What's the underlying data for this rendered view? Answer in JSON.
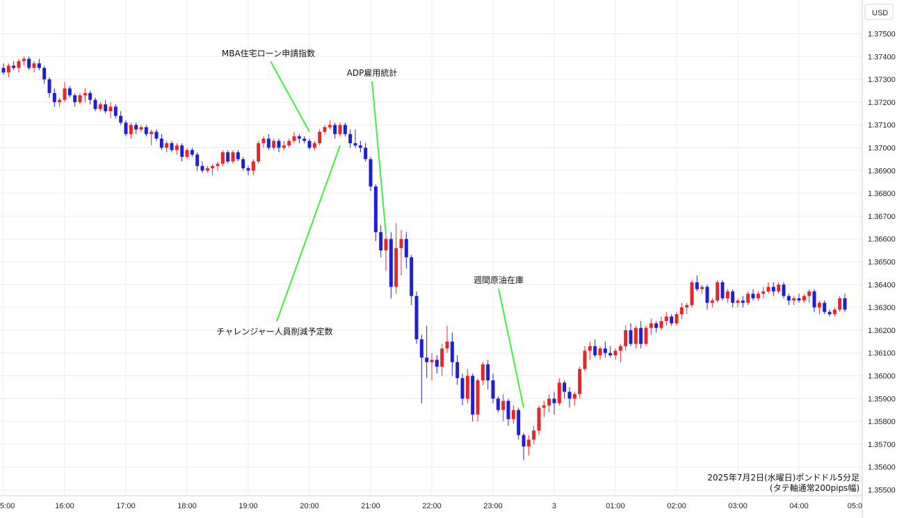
{
  "chart_data": {
    "type": "candlestick",
    "currency_label": "USD",
    "note_line1": "2025年7月2日(水曜日)ポンドドル5分足",
    "note_line2": "(タテ軸通常200pips幅)",
    "ylim": [
      1.355,
      1.3759
    ],
    "yticks": [
      "1.37500",
      "1.37400",
      "1.37300",
      "1.37200",
      "1.37100",
      "1.37000",
      "1.36900",
      "1.36800",
      "1.36700",
      "1.36600",
      "1.36500",
      "1.36400",
      "1.36300",
      "1.36200",
      "1.36100",
      "1.36000",
      "1.35900",
      "1.35800",
      "1.35700",
      "1.35600",
      "1.35500"
    ],
    "xticks": [
      "5:00",
      "16:00",
      "17:00",
      "18:00",
      "19:00",
      "20:00",
      "21:00",
      "22:00",
      "23:00",
      "3",
      "01:00",
      "02:00",
      "03:00",
      "04:00",
      "05:0"
    ],
    "colors": {
      "up": "#e8262a",
      "down": "#1f1fd8",
      "annotation": "#3cf03c"
    },
    "annotations": [
      {
        "label": "MBA住宅ローン申請指数",
        "target_time": "20:00",
        "target_price": 1.3707
      },
      {
        "label": "ADP雇用統計",
        "target_time": "21:15",
        "target_price": 1.3662
      },
      {
        "label": "チャレンジャー人員削減予定数",
        "target_time": "20:30",
        "target_price": 1.3701
      },
      {
        "label": "週間原油在庫",
        "target_time": "23:30",
        "target_price": 1.3586
      }
    ],
    "candles": [
      [
        1.3735,
        1.3737,
        1.3732,
        1.3733
      ],
      [
        1.3733,
        1.3737,
        1.3731,
        1.3736
      ],
      [
        1.3736,
        1.3738,
        1.3734,
        1.3735
      ],
      [
        1.3735,
        1.3739,
        1.3733,
        1.3738
      ],
      [
        1.3738,
        1.374,
        1.3736,
        1.3739
      ],
      [
        1.3739,
        1.374,
        1.3734,
        1.3735
      ],
      [
        1.3735,
        1.3738,
        1.3733,
        1.3737
      ],
      [
        1.3737,
        1.3739,
        1.3734,
        1.3735
      ],
      [
        1.3735,
        1.3736,
        1.3728,
        1.373
      ],
      [
        1.373,
        1.3731,
        1.3722,
        1.3724
      ],
      [
        1.3724,
        1.3726,
        1.3718,
        1.372
      ],
      [
        1.372,
        1.3722,
        1.3718,
        1.3721
      ],
      [
        1.3721,
        1.3729,
        1.372,
        1.3726
      ],
      [
        1.3726,
        1.3727,
        1.3722,
        1.3723
      ],
      [
        1.3723,
        1.3724,
        1.3718,
        1.372
      ],
      [
        1.372,
        1.3724,
        1.3719,
        1.3723
      ],
      [
        1.3723,
        1.3726,
        1.372,
        1.3724
      ],
      [
        1.3724,
        1.3725,
        1.3719,
        1.3721
      ],
      [
        1.3721,
        1.3722,
        1.3716,
        1.3717
      ],
      [
        1.3717,
        1.372,
        1.3716,
        1.3719
      ],
      [
        1.3719,
        1.3721,
        1.3715,
        1.3716
      ],
      [
        1.3716,
        1.372,
        1.3713,
        1.3718
      ],
      [
        1.3718,
        1.3719,
        1.3713,
        1.3714
      ],
      [
        1.3714,
        1.3716,
        1.371,
        1.3711
      ],
      [
        1.3711,
        1.3712,
        1.3705,
        1.3706
      ],
      [
        1.3706,
        1.3711,
        1.3704,
        1.371
      ],
      [
        1.371,
        1.3711,
        1.3706,
        1.3708
      ],
      [
        1.3708,
        1.371,
        1.3707,
        1.3709
      ],
      [
        1.3709,
        1.371,
        1.3705,
        1.3706
      ],
      [
        1.3706,
        1.3708,
        1.3701,
        1.3707
      ],
      [
        1.3707,
        1.3708,
        1.3703,
        1.3704
      ],
      [
        1.3704,
        1.3706,
        1.3699,
        1.37
      ],
      [
        1.37,
        1.3703,
        1.3698,
        1.3702
      ],
      [
        1.3702,
        1.3703,
        1.3698,
        1.3699
      ],
      [
        1.3699,
        1.3702,
        1.3697,
        1.3701
      ],
      [
        1.3701,
        1.3702,
        1.3694,
        1.3696
      ],
      [
        1.3696,
        1.37,
        1.3695,
        1.3699
      ],
      [
        1.3699,
        1.37,
        1.3696,
        1.3697
      ],
      [
        1.3697,
        1.3698,
        1.369,
        1.3692
      ],
      [
        1.3692,
        1.3694,
        1.3689,
        1.369
      ],
      [
        1.369,
        1.3692,
        1.3689,
        1.3691
      ],
      [
        1.3691,
        1.3693,
        1.3688,
        1.3692
      ],
      [
        1.3692,
        1.3694,
        1.369,
        1.3693
      ],
      [
        1.3693,
        1.3699,
        1.3692,
        1.3698
      ],
      [
        1.3698,
        1.3699,
        1.3693,
        1.3694
      ],
      [
        1.3694,
        1.3699,
        1.3693,
        1.3698
      ],
      [
        1.3698,
        1.3699,
        1.3694,
        1.3695
      ],
      [
        1.3695,
        1.3696,
        1.369,
        1.3691
      ],
      [
        1.3691,
        1.3692,
        1.3688,
        1.369
      ],
      [
        1.369,
        1.3695,
        1.3688,
        1.3694
      ],
      [
        1.3694,
        1.3703,
        1.3693,
        1.3702
      ],
      [
        1.3702,
        1.3705,
        1.37,
        1.3704
      ],
      [
        1.3704,
        1.3706,
        1.3699,
        1.37
      ],
      [
        1.37,
        1.3704,
        1.3699,
        1.3703
      ],
      [
        1.3703,
        1.3704,
        1.3698,
        1.37
      ],
      [
        1.37,
        1.3703,
        1.3699,
        1.3701
      ],
      [
        1.3701,
        1.3704,
        1.37,
        1.3703
      ],
      [
        1.3703,
        1.3707,
        1.3702,
        1.3705
      ],
      [
        1.3705,
        1.3706,
        1.3702,
        1.3704
      ],
      [
        1.3704,
        1.3705,
        1.3702,
        1.3703
      ],
      [
        1.3703,
        1.3704,
        1.3699,
        1.37
      ],
      [
        1.37,
        1.3703,
        1.3699,
        1.3702
      ],
      [
        1.3702,
        1.3708,
        1.3701,
        1.3707
      ],
      [
        1.3707,
        1.371,
        1.3706,
        1.3709
      ],
      [
        1.3709,
        1.3712,
        1.3708,
        1.371
      ],
      [
        1.371,
        1.3711,
        1.3704,
        1.3706
      ],
      [
        1.3706,
        1.3711,
        1.3705,
        1.371
      ],
      [
        1.371,
        1.3711,
        1.3705,
        1.3706
      ],
      [
        1.3706,
        1.3708,
        1.37,
        1.3702
      ],
      [
        1.3702,
        1.3708,
        1.37,
        1.3701
      ],
      [
        1.3701,
        1.3703,
        1.3698,
        1.37
      ],
      [
        1.37,
        1.3702,
        1.3694,
        1.3695
      ],
      [
        1.3695,
        1.3696,
        1.3681,
        1.3683
      ],
      [
        1.3683,
        1.3684,
        1.3659,
        1.3663
      ],
      [
        1.3663,
        1.3666,
        1.3652,
        1.3655
      ],
      [
        1.3655,
        1.3662,
        1.3646,
        1.366
      ],
      [
        1.366,
        1.3663,
        1.3634,
        1.3639
      ],
      [
        1.3639,
        1.3667,
        1.3636,
        1.3656
      ],
      [
        1.3656,
        1.3664,
        1.3644,
        1.366
      ],
      [
        1.366,
        1.3663,
        1.3647,
        1.3652
      ],
      [
        1.3652,
        1.3653,
        1.3631,
        1.3635
      ],
      [
        1.3635,
        1.3637,
        1.3614,
        1.3616
      ],
      [
        1.3616,
        1.3618,
        1.3588,
        1.3608
      ],
      [
        1.3608,
        1.3622,
        1.3599,
        1.3606
      ],
      [
        1.3606,
        1.361,
        1.3598,
        1.3607
      ],
      [
        1.3607,
        1.3609,
        1.3601,
        1.3604
      ],
      [
        1.3604,
        1.3614,
        1.36,
        1.3612
      ],
      [
        1.3612,
        1.3622,
        1.361,
        1.3615
      ],
      [
        1.3615,
        1.3619,
        1.36,
        1.3606
      ],
      [
        1.3606,
        1.3609,
        1.3596,
        1.3599
      ],
      [
        1.3599,
        1.3601,
        1.3587,
        1.359
      ],
      [
        1.359,
        1.3603,
        1.3588,
        1.36
      ],
      [
        1.36,
        1.3601,
        1.358,
        1.3583
      ],
      [
        1.3583,
        1.3599,
        1.358,
        1.3598
      ],
      [
        1.3598,
        1.3606,
        1.3596,
        1.3605
      ],
      [
        1.3605,
        1.3607,
        1.3594,
        1.3598
      ],
      [
        1.3598,
        1.3601,
        1.3588,
        1.359
      ],
      [
        1.359,
        1.3591,
        1.3584,
        1.3585
      ],
      [
        1.3585,
        1.3592,
        1.358,
        1.3589
      ],
      [
        1.3589,
        1.359,
        1.3578,
        1.3581
      ],
      [
        1.3581,
        1.3587,
        1.3579,
        1.3585
      ],
      [
        1.3585,
        1.3586,
        1.3572,
        1.3574
      ],
      [
        1.3574,
        1.3575,
        1.3563,
        1.3569
      ],
      [
        1.3569,
        1.3574,
        1.3565,
        1.3572
      ],
      [
        1.3572,
        1.3578,
        1.357,
        1.3576
      ],
      [
        1.3576,
        1.3587,
        1.3574,
        1.3586
      ],
      [
        1.3586,
        1.3589,
        1.3582,
        1.3587
      ],
      [
        1.3587,
        1.3592,
        1.3584,
        1.359
      ],
      [
        1.359,
        1.3593,
        1.3583,
        1.3588
      ],
      [
        1.3588,
        1.3599,
        1.3587,
        1.3597
      ],
      [
        1.3597,
        1.3598,
        1.359,
        1.3593
      ],
      [
        1.3593,
        1.3595,
        1.3586,
        1.359
      ],
      [
        1.359,
        1.3593,
        1.3587,
        1.3592
      ],
      [
        1.3592,
        1.3604,
        1.359,
        1.3603
      ],
      [
        1.3603,
        1.3613,
        1.3602,
        1.3611
      ],
      [
        1.3611,
        1.3615,
        1.3607,
        1.3613
      ],
      [
        1.3613,
        1.3616,
        1.3608,
        1.3609
      ],
      [
        1.3609,
        1.3613,
        1.3607,
        1.3612
      ],
      [
        1.3612,
        1.3615,
        1.3608,
        1.361
      ],
      [
        1.361,
        1.3613,
        1.3608,
        1.3609
      ],
      [
        1.3609,
        1.3612,
        1.3607,
        1.3611
      ],
      [
        1.3611,
        1.3614,
        1.3606,
        1.3613
      ],
      [
        1.3613,
        1.3622,
        1.3611,
        1.362
      ],
      [
        1.362,
        1.3623,
        1.3613,
        1.3614
      ],
      [
        1.3614,
        1.3622,
        1.3612,
        1.3621
      ],
      [
        1.3621,
        1.3624,
        1.3612,
        1.3614
      ],
      [
        1.3614,
        1.3622,
        1.3613,
        1.3621
      ],
      [
        1.3621,
        1.3625,
        1.3618,
        1.3623
      ],
      [
        1.3623,
        1.3624,
        1.3619,
        1.3621
      ],
      [
        1.3621,
        1.3626,
        1.362,
        1.3624
      ],
      [
        1.3624,
        1.3628,
        1.3622,
        1.3626
      ],
      [
        1.3626,
        1.3627,
        1.3622,
        1.3623
      ],
      [
        1.3623,
        1.3628,
        1.3622,
        1.3627
      ],
      [
        1.3627,
        1.3632,
        1.3625,
        1.363
      ],
      [
        1.363,
        1.3632,
        1.3627,
        1.3631
      ],
      [
        1.3631,
        1.3642,
        1.363,
        1.3641
      ],
      [
        1.3641,
        1.3644,
        1.3637,
        1.3638
      ],
      [
        1.3638,
        1.364,
        1.3636,
        1.3639
      ],
      [
        1.3639,
        1.364,
        1.3629,
        1.3632
      ],
      [
        1.3632,
        1.3634,
        1.363,
        1.3633
      ],
      [
        1.3633,
        1.3642,
        1.3632,
        1.3641
      ],
      [
        1.3641,
        1.3642,
        1.3633,
        1.3634
      ],
      [
        1.3634,
        1.3638,
        1.3632,
        1.3637
      ],
      [
        1.3637,
        1.3638,
        1.363,
        1.3632
      ],
      [
        1.3632,
        1.3634,
        1.363,
        1.3633
      ],
      [
        1.3633,
        1.3635,
        1.363,
        1.3632
      ],
      [
        1.3632,
        1.3637,
        1.3631,
        1.3636
      ],
      [
        1.3636,
        1.3638,
        1.3633,
        1.3634
      ],
      [
        1.3634,
        1.3637,
        1.3633,
        1.3636
      ],
      [
        1.3636,
        1.3639,
        1.3634,
        1.3637
      ],
      [
        1.3637,
        1.3641,
        1.3636,
        1.3639
      ],
      [
        1.3639,
        1.3641,
        1.3635,
        1.3637
      ],
      [
        1.3637,
        1.3641,
        1.3636,
        1.364
      ],
      [
        1.364,
        1.3641,
        1.3634,
        1.3635
      ],
      [
        1.3635,
        1.3636,
        1.3631,
        1.3633
      ],
      [
        1.3633,
        1.3635,
        1.3631,
        1.3634
      ],
      [
        1.3634,
        1.3636,
        1.3632,
        1.3633
      ],
      [
        1.3633,
        1.3636,
        1.3632,
        1.3635
      ],
      [
        1.3635,
        1.3638,
        1.3632,
        1.3637
      ],
      [
        1.3637,
        1.3638,
        1.3628,
        1.363
      ],
      [
        1.363,
        1.3633,
        1.3627,
        1.3632
      ],
      [
        1.3632,
        1.3633,
        1.3627,
        1.3628
      ],
      [
        1.3628,
        1.3629,
        1.3626,
        1.3627
      ],
      [
        1.3627,
        1.363,
        1.3626,
        1.3629
      ],
      [
        1.3629,
        1.3635,
        1.3628,
        1.3634
      ],
      [
        1.3634,
        1.3636,
        1.3628,
        1.3629
      ]
    ]
  }
}
